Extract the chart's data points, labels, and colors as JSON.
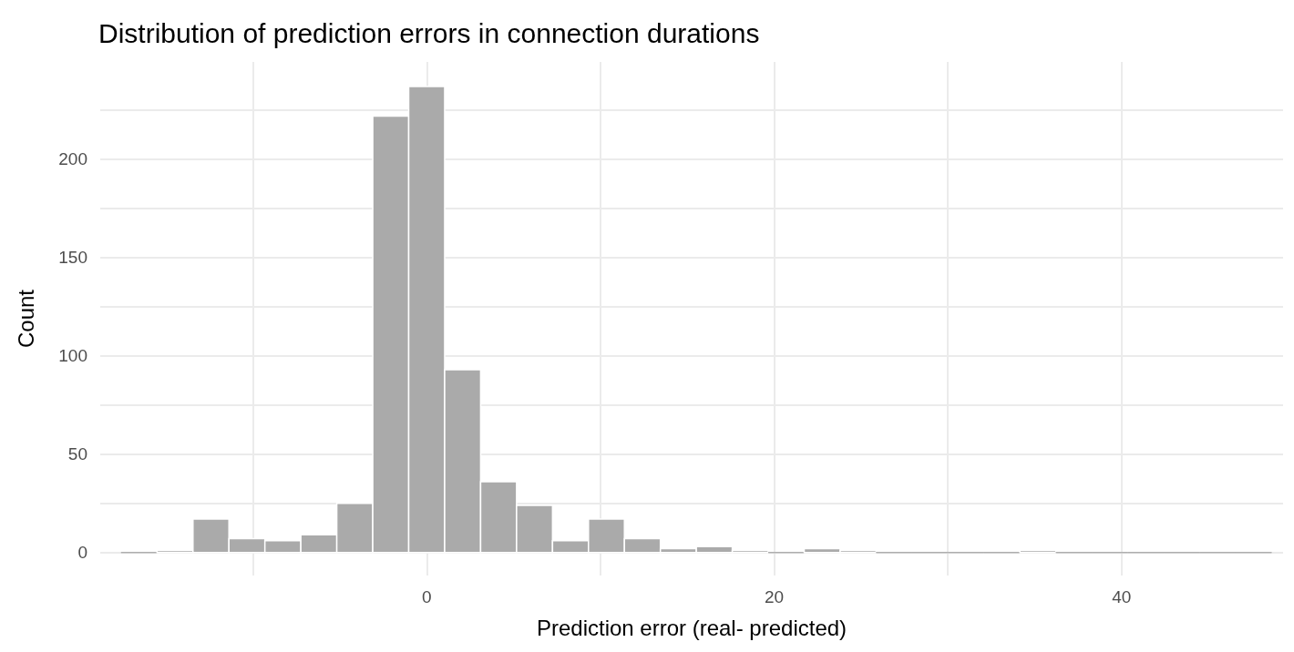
{
  "chart_data": {
    "type": "histogram",
    "title": "Distribution of prediction errors in connection durations",
    "xlabel": "Prediction error (real- predicted)",
    "ylabel": "Count",
    "color": "#aaaaaa",
    "bins": [
      -17.6,
      -15.53,
      -13.46,
      -11.39,
      -9.32,
      -7.25,
      -5.18,
      -3.11,
      -1.04,
      1.03,
      3.1,
      5.17,
      7.24,
      9.31,
      11.38,
      13.45,
      15.52,
      17.59,
      19.66,
      21.73,
      23.8,
      25.87,
      27.94,
      30.01,
      32.08,
      34.15,
      36.22,
      38.29,
      40.36,
      42.43,
      44.5,
      46.57,
      48.64
    ],
    "values": [
      0,
      1,
      17,
      7,
      6,
      9,
      25,
      222,
      237,
      93,
      36,
      24,
      6,
      17,
      7,
      2,
      3,
      1,
      0,
      2,
      1,
      0,
      0,
      0,
      0,
      1,
      0,
      0,
      0,
      0,
      0,
      0
    ],
    "xlim": [
      -18.8,
      49.3
    ],
    "xticks": [
      {
        "value": -10,
        "label": null
      },
      0,
      {
        "value": 10,
        "label": null
      },
      20,
      {
        "value": 30,
        "label": null
      },
      40
    ],
    "ylim": [
      -11.7,
      249.5
    ],
    "yticks": [
      0,
      {
        "value": 25,
        "label": null
      },
      50,
      {
        "value": 75,
        "label": null
      },
      100,
      {
        "value": 125,
        "label": null
      },
      150,
      {
        "value": 175,
        "label": null
      },
      200,
      {
        "value": 225,
        "label": null
      }
    ],
    "grid": true
  }
}
